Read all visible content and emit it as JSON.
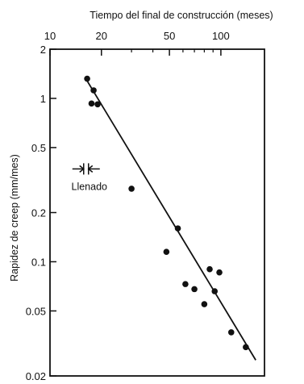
{
  "chart_data": {
    "type": "scatter",
    "title": "",
    "xlabel": "Tiempo del final de construcción (meses)",
    "ylabel": "Rapidez de creep (mm/mes)",
    "x_scale": "log",
    "y_scale": "log",
    "xlim": [
      10,
      180
    ],
    "ylim": [
      0.02,
      2
    ],
    "x_ticks": [
      {
        "value": 10,
        "label": "10"
      },
      {
        "value": 20,
        "label": "20"
      },
      {
        "value": 50,
        "label": "50"
      },
      {
        "value": 100,
        "label": "100"
      }
    ],
    "y_ticks": [
      {
        "value": 2,
        "label": "2"
      },
      {
        "value": 1,
        "label": "1"
      },
      {
        "value": 0.5,
        "label": "0.5"
      },
      {
        "value": 0.2,
        "label": "0.2"
      },
      {
        "value": 0.1,
        "label": "0.1"
      },
      {
        "value": 0.05,
        "label": "0.05"
      },
      {
        "value": 0.02,
        "label": "0.02"
      }
    ],
    "x_axis_position": "top",
    "grid": false,
    "legend": "none",
    "points": [
      {
        "x": 16.5,
        "y": 1.32
      },
      {
        "x": 17.5,
        "y": 0.93
      },
      {
        "x": 18.0,
        "y": 1.12
      },
      {
        "x": 19.0,
        "y": 0.92
      },
      {
        "x": 30.0,
        "y": 0.28
      },
      {
        "x": 48.0,
        "y": 0.115
      },
      {
        "x": 56.0,
        "y": 0.16
      },
      {
        "x": 62.0,
        "y": 0.073
      },
      {
        "x": 70.0,
        "y": 0.068
      },
      {
        "x": 80.0,
        "y": 0.055
      },
      {
        "x": 86.0,
        "y": 0.09
      },
      {
        "x": 92.0,
        "y": 0.066
      },
      {
        "x": 98.0,
        "y": 0.086
      },
      {
        "x": 115.0,
        "y": 0.037
      },
      {
        "x": 140.0,
        "y": 0.03
      }
    ],
    "trend_line": {
      "x": [
        16.0,
        160.0
      ],
      "y": [
        1.35,
        0.025
      ]
    },
    "annotations": [
      {
        "text": "Llenado",
        "x_range": [
          15.2,
          17.4
        ],
        "y": 0.37
      }
    ],
    "colors": {
      "points": "#111111",
      "line": "#111111",
      "axes": "#111111"
    }
  }
}
